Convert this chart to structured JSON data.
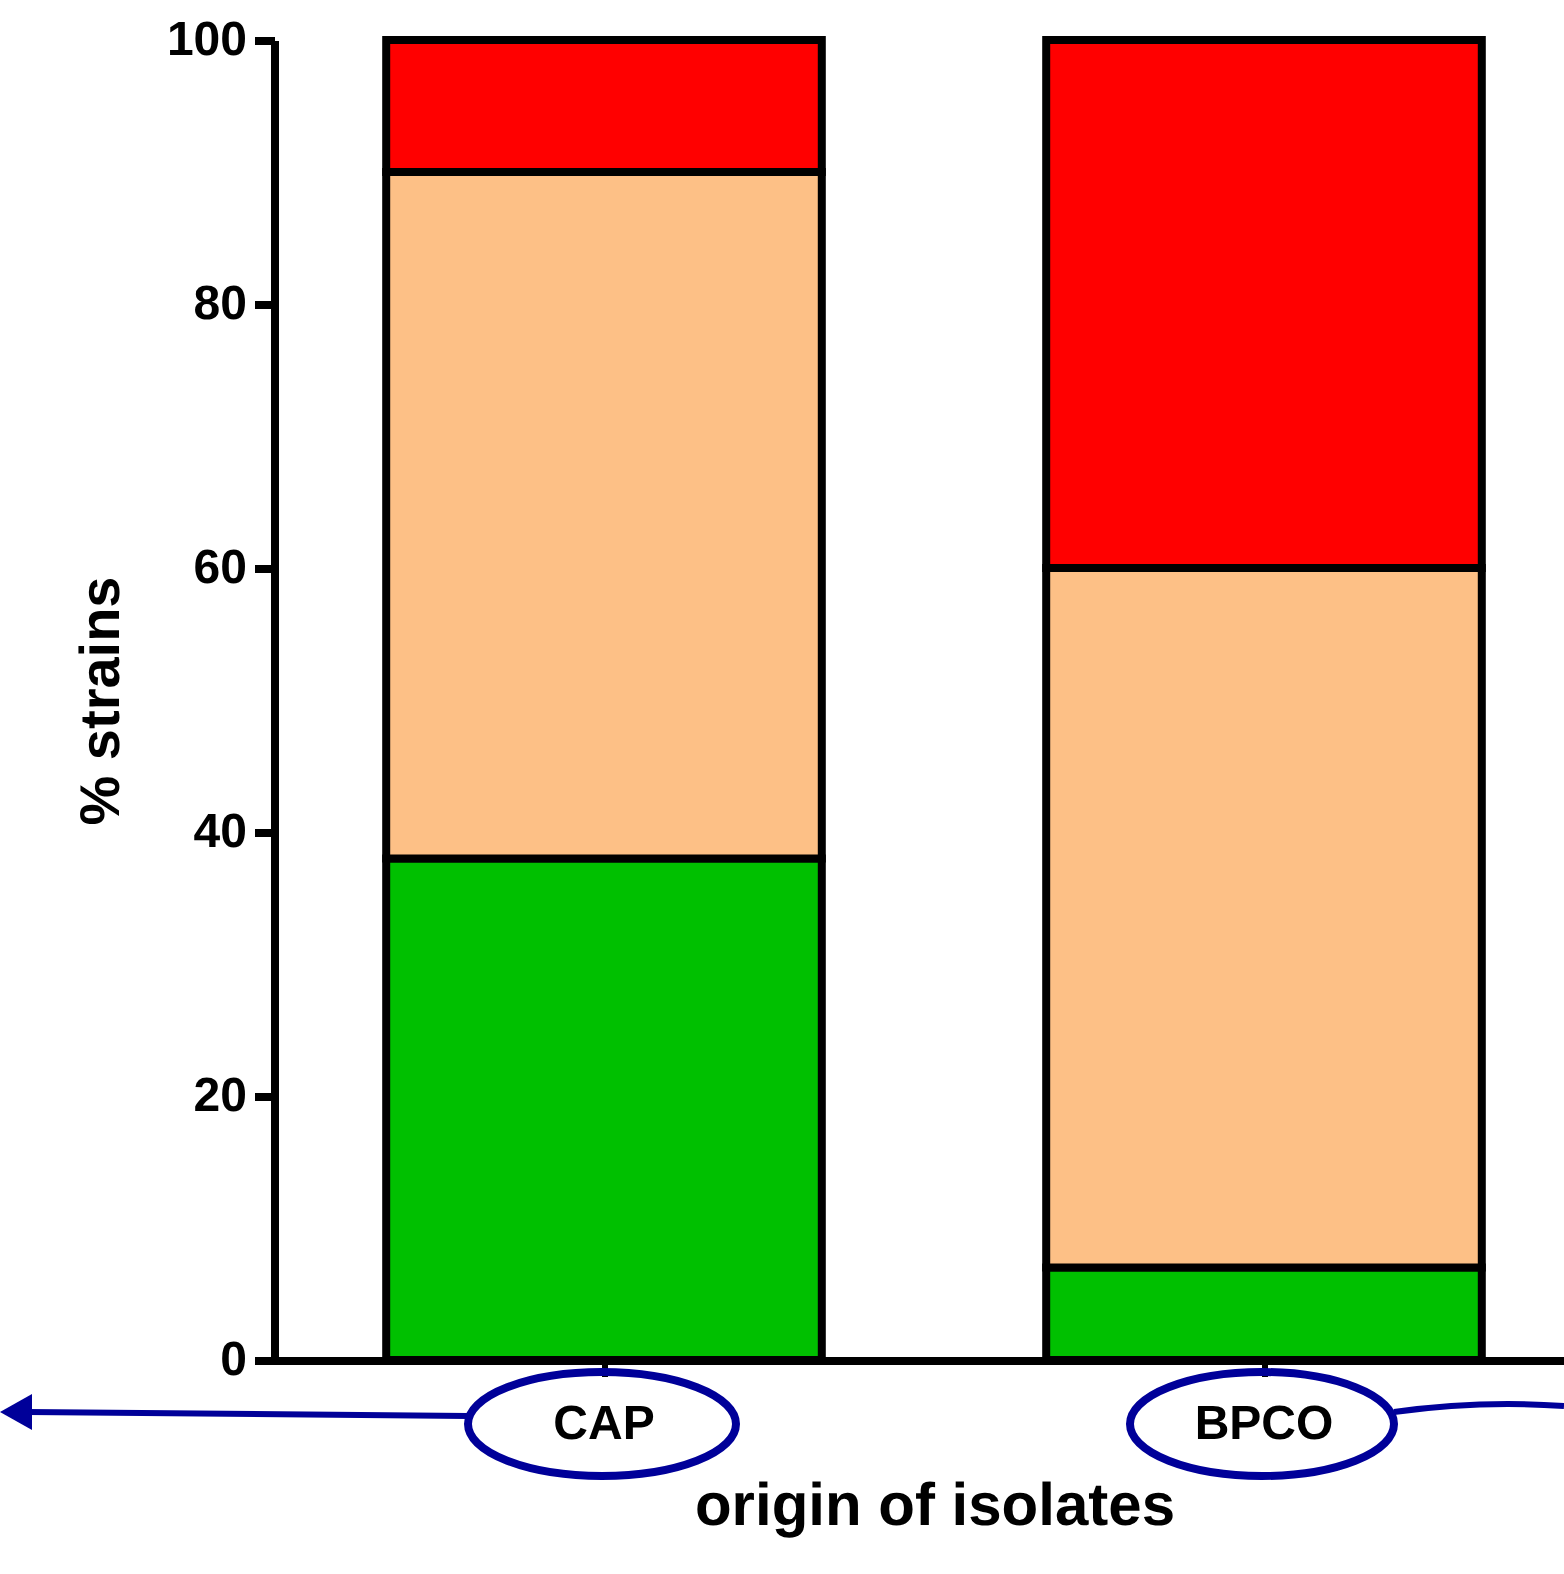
{
  "chart_data": {
    "type": "bar",
    "stacked": true,
    "xlabel": "origin of isolates",
    "ylabel": "% strains",
    "categories": [
      "CAP",
      "BPCO"
    ],
    "series": [
      {
        "color": "#00c000",
        "values": [
          38,
          7
        ]
      },
      {
        "color": "#fdc086",
        "values": [
          52,
          53
        ]
      },
      {
        "color": "#ff0000",
        "values": [
          10,
          40
        ]
      }
    ],
    "ylim": [
      0,
      100
    ],
    "yticks": [
      0,
      20,
      40,
      60,
      80,
      100
    ],
    "grid": false
  }
}
